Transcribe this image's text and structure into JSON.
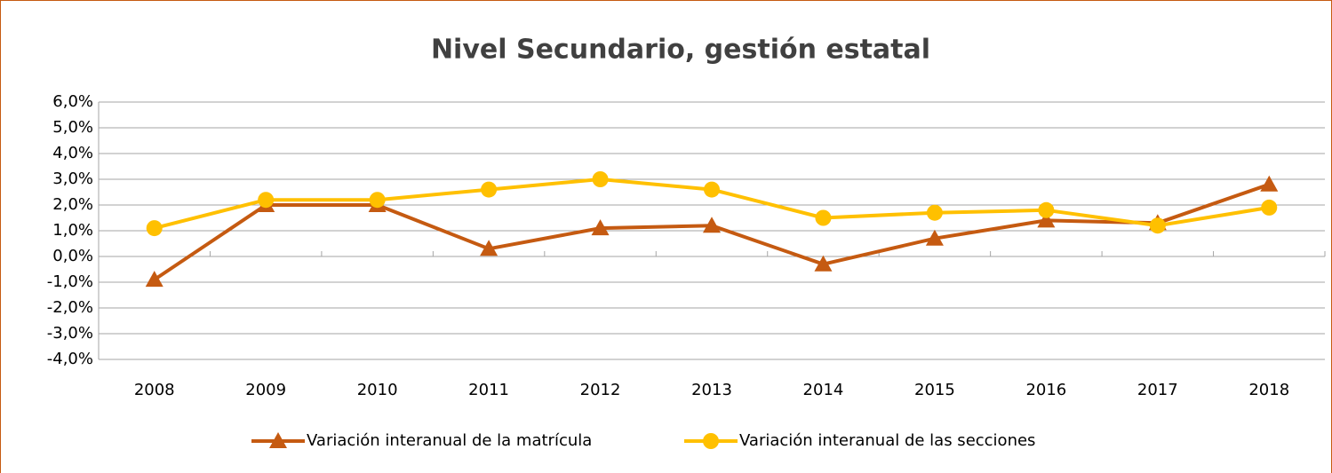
{
  "chart_data": {
    "type": "line",
    "title": "Nivel Secundario, gestión estatal",
    "categories": [
      "2008",
      "2009",
      "2010",
      "2011",
      "2012",
      "2013",
      "2014",
      "2015",
      "2016",
      "2017",
      "2018"
    ],
    "series": [
      {
        "name": "Variación interanual de la matrícula",
        "color": "#c55a11",
        "marker": "triangle",
        "values": [
          -0.9,
          2.0,
          2.0,
          0.3,
          1.1,
          1.2,
          -0.3,
          0.7,
          1.4,
          1.3,
          2.8
        ]
      },
      {
        "name": "Variación interanual de las secciones",
        "color": "#ffc000",
        "marker": "circle",
        "values": [
          1.1,
          2.2,
          2.2,
          2.6,
          3.0,
          2.6,
          1.5,
          1.7,
          1.8,
          1.2,
          1.9
        ]
      }
    ],
    "ylim": [
      -4,
      6
    ],
    "yticks": [
      {
        "value": -4,
        "label": "-4,0%"
      },
      {
        "value": -3,
        "label": "-3,0%"
      },
      {
        "value": -2,
        "label": "-2,0%"
      },
      {
        "value": -1,
        "label": "-1,0%"
      },
      {
        "value": 0,
        "label": "0,0%"
      },
      {
        "value": 1,
        "label": "1,0%"
      },
      {
        "value": 2,
        "label": "2,0%"
      },
      {
        "value": 3,
        "label": "3,0%"
      },
      {
        "value": 4,
        "label": "4,0%"
      },
      {
        "value": 5,
        "label": "5,0%"
      },
      {
        "value": 6,
        "label": "6,0%"
      }
    ],
    "grid": true,
    "legend": "bottom"
  }
}
